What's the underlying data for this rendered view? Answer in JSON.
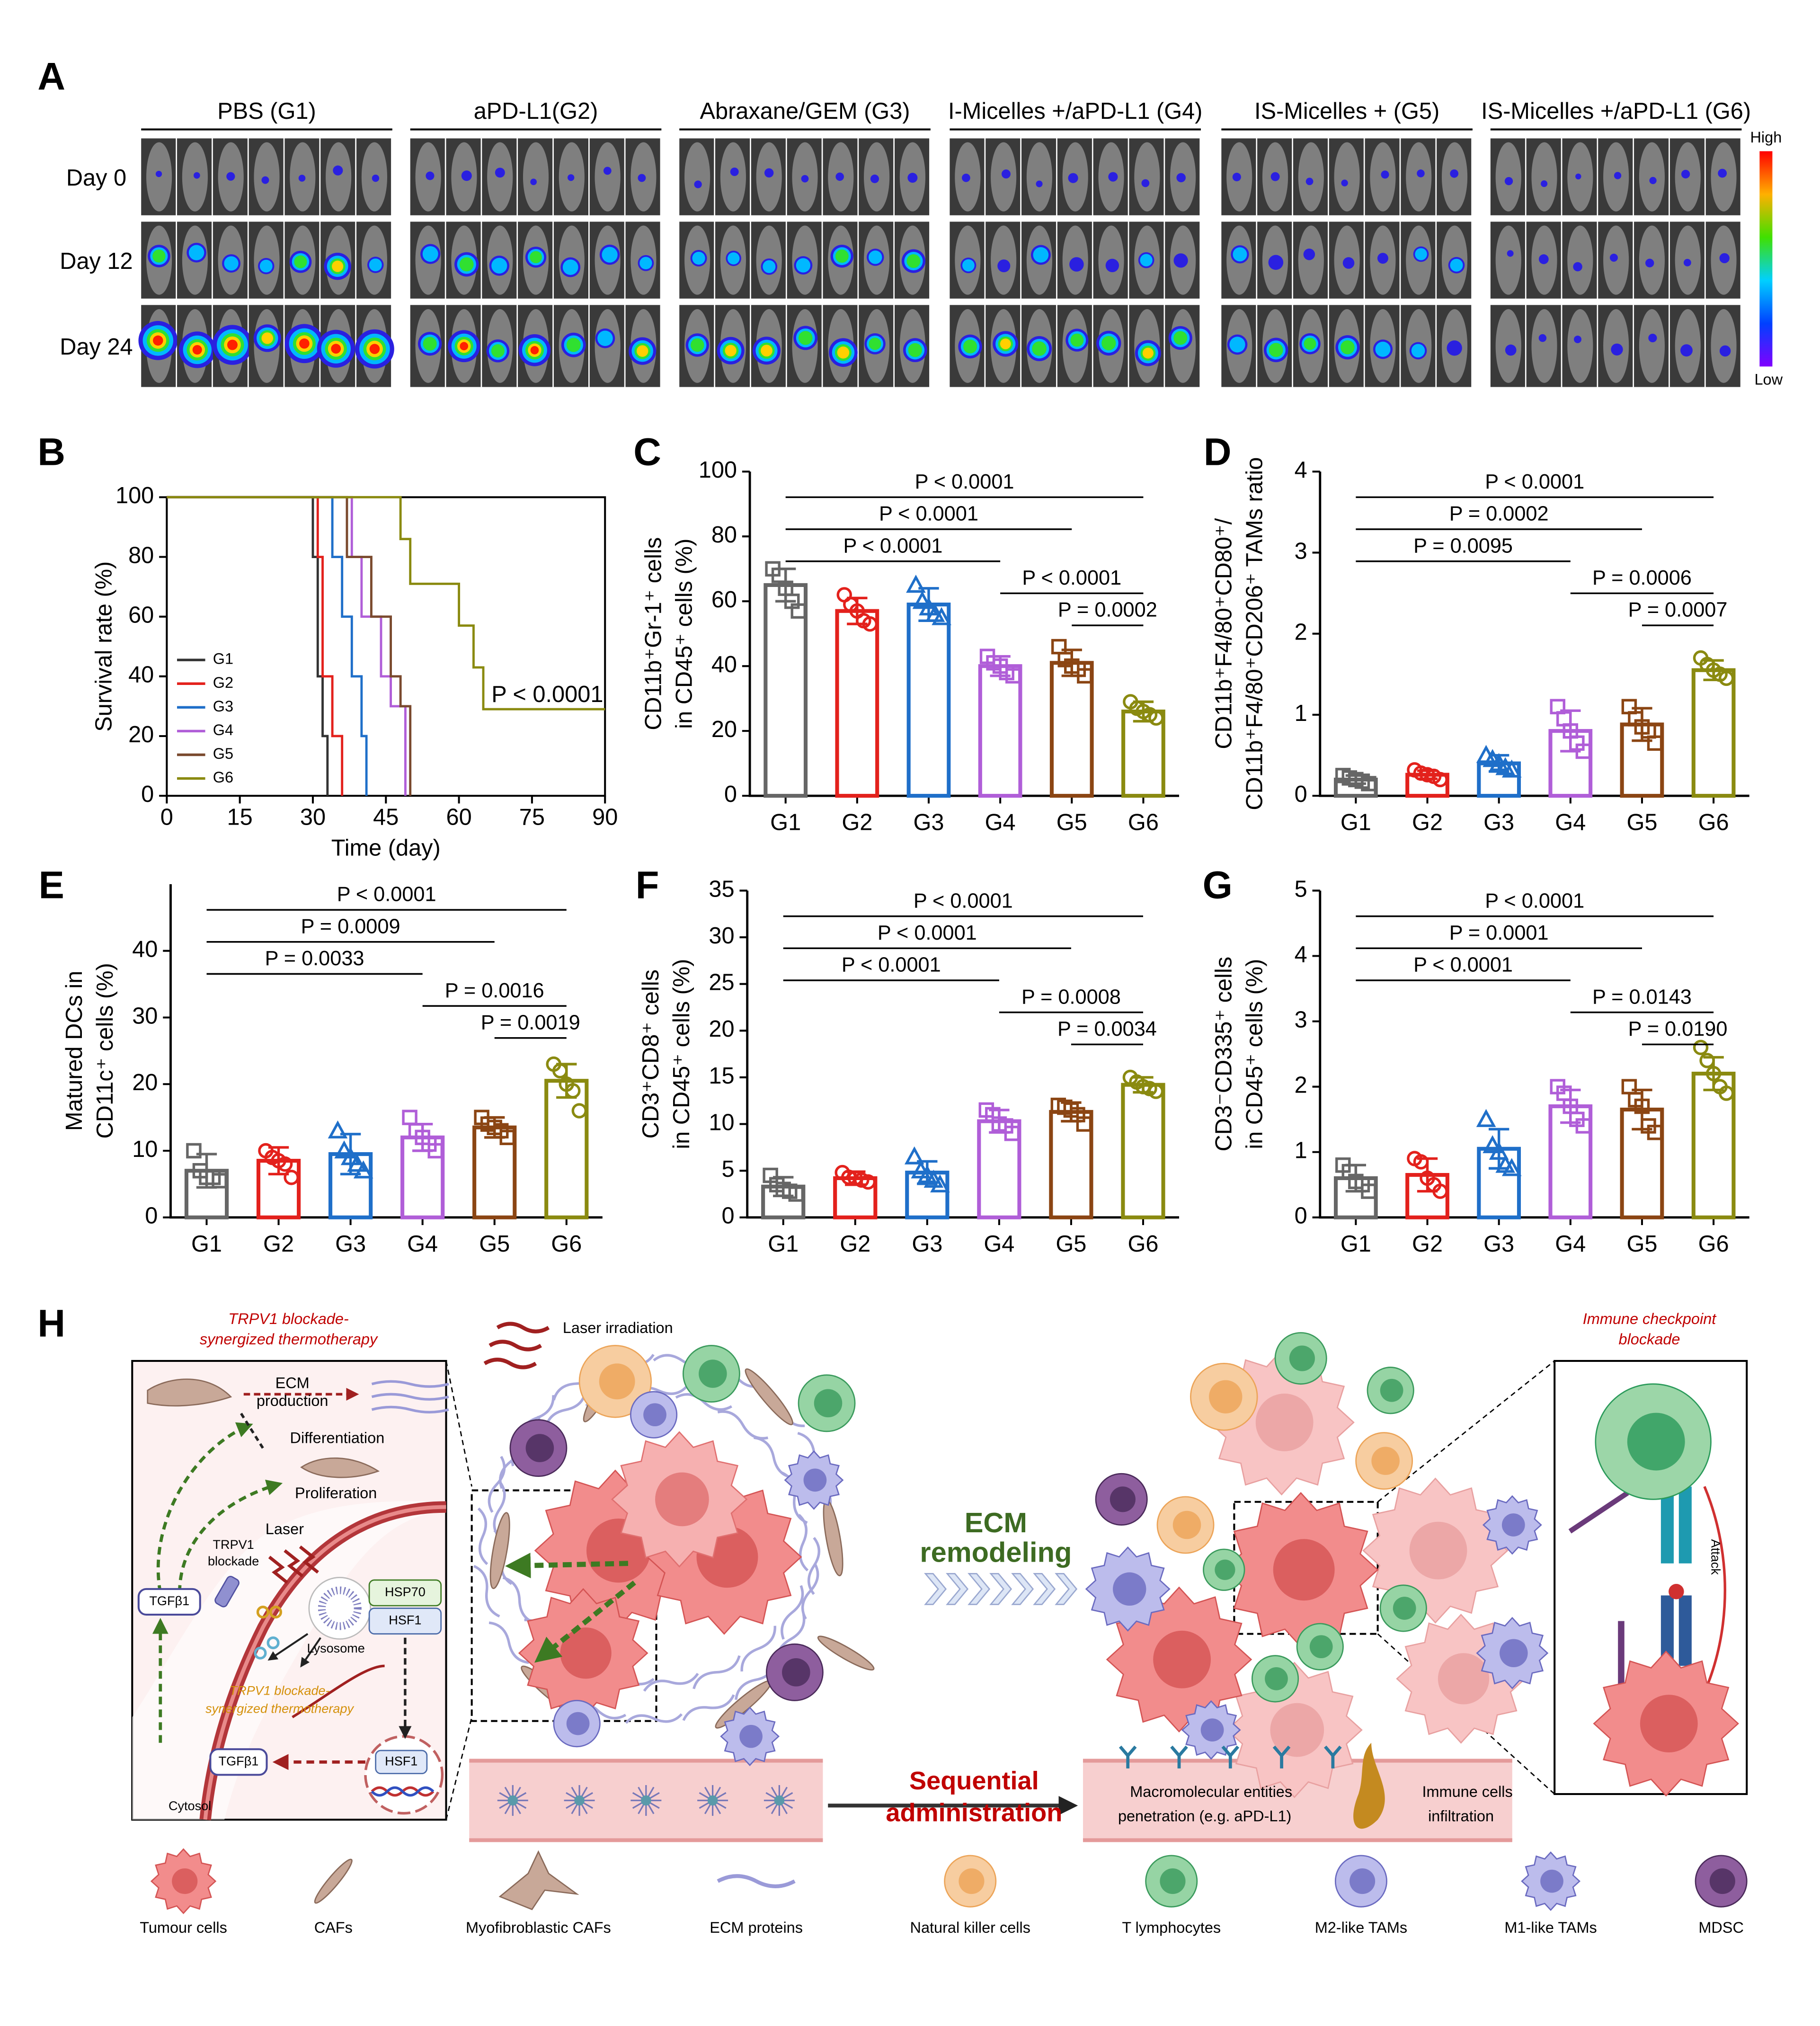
{
  "panel_labels": [
    "A",
    "B",
    "C",
    "D",
    "E",
    "F",
    "G",
    "H"
  ],
  "panel_a": {
    "groups": [
      "PBS (G1)",
      "aPD-L1(G2)",
      "Abraxane/GEM (G3)",
      "I-Micelles +/aPD-L1 (G4)",
      "IS-Micelles + (G5)",
      "IS-Micelles +/aPD-L1 (G6)"
    ],
    "days": [
      "Day 0",
      "Day 12",
      "Day 24"
    ],
    "colorbar": {
      "high": "High",
      "low": "Low"
    }
  },
  "chart_data": [
    {
      "type": "line",
      "xlabel": "Time (day)",
      "ylabel": "Survival rate (%)",
      "xlim": [
        0,
        90
      ],
      "xticks": [
        0,
        15,
        30,
        45,
        60,
        75,
        90
      ],
      "ylim": [
        0,
        100
      ],
      "yticks": [
        0,
        20,
        40,
        60,
        80,
        100
      ],
      "legend": "lower left",
      "annotation": "P < 0.0001",
      "series": [
        {
          "name": "G1",
          "color": "#333333",
          "x": [
            0,
            30,
            30,
            31,
            31,
            32,
            32,
            33,
            33
          ],
          "values": [
            100,
            100,
            80,
            80,
            40,
            40,
            20,
            20,
            0
          ]
        },
        {
          "name": "G2",
          "color": "#e3211c",
          "x": [
            0,
            31,
            31,
            32,
            32,
            34,
            34,
            36,
            36
          ],
          "values": [
            100,
            100,
            80,
            80,
            40,
            40,
            20,
            20,
            0
          ]
        },
        {
          "name": "G3",
          "color": "#1f6fc9",
          "x": [
            0,
            34,
            34,
            36,
            36,
            38,
            38,
            40,
            40,
            41,
            41
          ],
          "values": [
            100,
            100,
            80,
            80,
            60,
            60,
            40,
            40,
            20,
            20,
            0
          ]
        },
        {
          "name": "G4",
          "color": "#b05ed8",
          "x": [
            0,
            38,
            38,
            40,
            40,
            44,
            44,
            46,
            46,
            49,
            49
          ],
          "values": [
            100,
            100,
            80,
            80,
            60,
            60,
            40,
            40,
            30,
            30,
            0
          ]
        },
        {
          "name": "G5",
          "color": "#7a4a2e",
          "x": [
            0,
            37,
            37,
            42,
            42,
            46,
            46,
            48,
            48,
            50,
            50
          ],
          "values": [
            100,
            100,
            80,
            80,
            60,
            60,
            40,
            40,
            30,
            30,
            0
          ]
        },
        {
          "name": "G6",
          "color": "#8a8a10",
          "x": [
            0,
            48,
            48,
            50,
            50,
            60,
            60,
            63,
            63,
            65,
            65,
            90
          ],
          "values": [
            100,
            100,
            86,
            86,
            71,
            71,
            57,
            57,
            43,
            43,
            29,
            29
          ]
        }
      ]
    },
    {
      "type": "bar",
      "ylabel": [
        "CD11b⁺Gr-1⁺ cells",
        "in CD45⁺ cells (%)"
      ],
      "categories": [
        "G1",
        "G2",
        "G3",
        "G4",
        "G5",
        "G6"
      ],
      "colors": [
        "#666666",
        "#e3211c",
        "#1f6fc9",
        "#b05ed8",
        "#8b4513",
        "#8a8a10"
      ],
      "markers": [
        "square",
        "circle",
        "triangle",
        "square",
        "square",
        "circle"
      ],
      "ylim": [
        0,
        100
      ],
      "yticks": [
        0,
        20,
        40,
        60,
        80,
        100
      ],
      "values": [
        65,
        57,
        59,
        40,
        41,
        26
      ],
      "errors": [
        5,
        4,
        5,
        3,
        4,
        3
      ],
      "points": [
        [
          70,
          68,
          64,
          60,
          57
        ],
        [
          62,
          59,
          57,
          54,
          53
        ],
        [
          65,
          60,
          58,
          56,
          55
        ],
        [
          43,
          41,
          40,
          38,
          37
        ],
        [
          46,
          42,
          40,
          39,
          37
        ],
        [
          29,
          27,
          26,
          25,
          24
        ]
      ],
      "comparisons": [
        {
          "groups": [
            "G1",
            "G6"
          ],
          "label": "P < 0.0001"
        },
        {
          "groups": [
            "G1",
            "G5"
          ],
          "label": "P < 0.0001"
        },
        {
          "groups": [
            "G1",
            "G4"
          ],
          "label": "P < 0.0001"
        },
        {
          "groups": [
            "G4",
            "G6"
          ],
          "label": "P < 0.0001"
        },
        {
          "groups": [
            "G5",
            "G6"
          ],
          "label": "P = 0.0002"
        }
      ]
    },
    {
      "type": "bar",
      "ylabel": [
        "CD11b⁺F4/80⁺CD80⁺/",
        "CD11b⁺F4/80⁺CD206⁺ TAMs ratio"
      ],
      "categories": [
        "G1",
        "G2",
        "G3",
        "G4",
        "G5",
        "G6"
      ],
      "colors": [
        "#666666",
        "#e3211c",
        "#1f6fc9",
        "#b05ed8",
        "#8b4513",
        "#8a8a10"
      ],
      "markers": [
        "square",
        "circle",
        "triangle",
        "square",
        "square",
        "circle"
      ],
      "ylim": [
        0,
        4
      ],
      "yticks": [
        0,
        1,
        2,
        3,
        4
      ],
      "values": [
        0.2,
        0.26,
        0.4,
        0.8,
        0.88,
        1.55
      ],
      "errors": [
        0.05,
        0.05,
        0.1,
        0.25,
        0.2,
        0.12
      ],
      "points": [
        [
          0.25,
          0.22,
          0.2,
          0.18,
          0.15
        ],
        [
          0.32,
          0.28,
          0.26,
          0.24,
          0.2
        ],
        [
          0.5,
          0.45,
          0.4,
          0.35,
          0.32
        ],
        [
          1.1,
          0.95,
          0.8,
          0.65,
          0.55
        ],
        [
          1.1,
          0.95,
          0.85,
          0.8,
          0.65
        ],
        [
          1.7,
          1.62,
          1.55,
          1.5,
          1.45
        ]
      ],
      "comparisons": [
        {
          "groups": [
            "G1",
            "G6"
          ],
          "label": "P < 0.0001"
        },
        {
          "groups": [
            "G1",
            "G5"
          ],
          "label": "P = 0.0002"
        },
        {
          "groups": [
            "G1",
            "G4"
          ],
          "label": "P = 0.0095"
        },
        {
          "groups": [
            "G4",
            "G6"
          ],
          "label": "P = 0.0006"
        },
        {
          "groups": [
            "G5",
            "G6"
          ],
          "label": "P = 0.0007"
        }
      ]
    },
    {
      "type": "bar",
      "ylabel": [
        "Matured DCs in",
        "CD11c⁺ cells (%)"
      ],
      "categories": [
        "G1",
        "G2",
        "G3",
        "G4",
        "G5",
        "G6"
      ],
      "colors": [
        "#666666",
        "#e3211c",
        "#1f6fc9",
        "#b05ed8",
        "#8b4513",
        "#8a8a10"
      ],
      "markers": [
        "square",
        "circle",
        "triangle",
        "square",
        "square",
        "circle"
      ],
      "ylim": [
        0,
        50
      ],
      "yticks": [
        0,
        10,
        20,
        30,
        40
      ],
      "values": [
        7,
        8.5,
        9.5,
        12,
        13.5,
        20.5
      ],
      "errors": [
        2.5,
        2,
        3,
        2,
        1.5,
        2.5
      ],
      "points": [
        [
          10,
          7,
          6,
          6,
          5.5
        ],
        [
          10,
          9,
          8.5,
          8,
          6
        ],
        [
          13,
          10,
          9,
          8,
          7
        ],
        [
          15,
          13,
          12,
          11,
          10
        ],
        [
          15,
          14,
          13.5,
          13,
          12
        ],
        [
          23,
          22,
          20,
          19,
          16
        ]
      ],
      "comparisons": [
        {
          "groups": [
            "G1",
            "G6"
          ],
          "label": "P < 0.0001"
        },
        {
          "groups": [
            "G1",
            "G5"
          ],
          "label": "P = 0.0009"
        },
        {
          "groups": [
            "G1",
            "G4"
          ],
          "label": "P = 0.0033"
        },
        {
          "groups": [
            "G4",
            "G6"
          ],
          "label": "P = 0.0016"
        },
        {
          "groups": [
            "G5",
            "G6"
          ],
          "label": "P = 0.0019"
        }
      ]
    },
    {
      "type": "bar",
      "ylabel": [
        "CD3⁺CD8⁺ cells",
        "in CD45⁺ cells (%)"
      ],
      "categories": [
        "G1",
        "G2",
        "G3",
        "G4",
        "G5",
        "G6"
      ],
      "colors": [
        "#666666",
        "#e3211c",
        "#1f6fc9",
        "#b05ed8",
        "#8b4513",
        "#8a8a10"
      ],
      "markers": [
        "square",
        "circle",
        "triangle",
        "square",
        "square",
        "circle"
      ],
      "ylim": [
        0,
        35
      ],
      "yticks": [
        0,
        5,
        10,
        15,
        20,
        25,
        30,
        35
      ],
      "values": [
        3.3,
        4.2,
        4.8,
        10.3,
        11.3,
        14.2
      ],
      "errors": [
        1,
        0.7,
        1.2,
        1.2,
        1,
        0.8
      ],
      "points": [
        [
          4.5,
          3.5,
          3,
          2.8,
          2.5
        ],
        [
          4.8,
          4.3,
          4.2,
          4,
          3.8
        ],
        [
          6.5,
          5,
          4.5,
          4,
          3.5
        ],
        [
          11.5,
          11,
          10,
          9.8,
          9
        ],
        [
          12,
          11.8,
          11.5,
          11,
          10
        ],
        [
          15,
          14.5,
          14,
          13.8,
          13.5
        ]
      ],
      "comparisons": [
        {
          "groups": [
            "G1",
            "G6"
          ],
          "label": "P < 0.0001"
        },
        {
          "groups": [
            "G1",
            "G5"
          ],
          "label": "P < 0.0001"
        },
        {
          "groups": [
            "G1",
            "G4"
          ],
          "label": "P < 0.0001"
        },
        {
          "groups": [
            "G4",
            "G6"
          ],
          "label": "P = 0.0008"
        },
        {
          "groups": [
            "G5",
            "G6"
          ],
          "label": "P = 0.0034"
        }
      ]
    },
    {
      "type": "bar",
      "ylabel": [
        "CD3⁻CD335⁺ cells",
        "in CD45⁺ cells (%)"
      ],
      "categories": [
        "G1",
        "G2",
        "G3",
        "G4",
        "G5",
        "G6"
      ],
      "colors": [
        "#666666",
        "#e3211c",
        "#1f6fc9",
        "#b05ed8",
        "#8b4513",
        "#8a8a10"
      ],
      "markers": [
        "square",
        "circle",
        "triangle",
        "square",
        "square",
        "circle"
      ],
      "ylim": [
        0,
        5
      ],
      "yticks": [
        0,
        1,
        2,
        3,
        4,
        5
      ],
      "values": [
        0.6,
        0.65,
        1.05,
        1.7,
        1.65,
        2.2
      ],
      "errors": [
        0.2,
        0.25,
        0.3,
        0.25,
        0.3,
        0.25
      ],
      "points": [
        [
          0.8,
          0.7,
          0.55,
          0.5,
          0.4
        ],
        [
          0.9,
          0.85,
          0.6,
          0.5,
          0.4
        ],
        [
          1.5,
          1.1,
          1.0,
          0.8,
          0.75
        ],
        [
          2.0,
          1.9,
          1.7,
          1.5,
          1.4
        ],
        [
          2.0,
          1.8,
          1.7,
          1.4,
          1.3
        ],
        [
          2.6,
          2.4,
          2.2,
          2.0,
          1.9
        ]
      ],
      "comparisons": [
        {
          "groups": [
            "G1",
            "G6"
          ],
          "label": "P < 0.0001"
        },
        {
          "groups": [
            "G1",
            "G5"
          ],
          "label": "P = 0.0001"
        },
        {
          "groups": [
            "G1",
            "G4"
          ],
          "label": "P < 0.0001"
        },
        {
          "groups": [
            "G4",
            "G6"
          ],
          "label": "P = 0.0143"
        },
        {
          "groups": [
            "G5",
            "G6"
          ],
          "label": "P = 0.0190"
        }
      ]
    }
  ],
  "panel_h": {
    "left_title": [
      "TRPV1 blockade-",
      "synergized thermotherapy"
    ],
    "ecm_production": [
      "ECM",
      "production"
    ],
    "differentiation": "Differentiation",
    "proliferation": "Proliferation",
    "laser": "Laser",
    "trpv1_blockade": [
      "TRPV1",
      "blockade"
    ],
    "tgfb1_top": "TGFβ1",
    "hsp70": "HSP70",
    "hsf1_top": "HSF1",
    "lysosome": "Lysosome",
    "inner_caption": [
      "TRPV1 blockade-",
      "synergized thermotherapy"
    ],
    "tgfb1_bottom": "TGFβ1",
    "hsf1_bottom": "HSF1",
    "cytosol": "Cytosol",
    "laser_irradiation": "Laser irradiation",
    "ecm_remodeling": [
      "ECM",
      "remodeling"
    ],
    "sequential": [
      "Sequential",
      "administration"
    ],
    "penetration": [
      "Macromolecular entities",
      "penetration (e.g. aPD-L1)"
    ],
    "infiltration": [
      "Immune cells",
      "infiltration"
    ],
    "right_title": [
      "Immune checkpoint",
      "blockade"
    ],
    "attack": "Attack",
    "legend": [
      "Tumour cells",
      "CAFs",
      "Myofibroblastic CAFs",
      "ECM proteins",
      "Natural killer cells",
      "T lymphocytes",
      "M2-like TAMs",
      "M1-like TAMs",
      "MDSC"
    ]
  }
}
